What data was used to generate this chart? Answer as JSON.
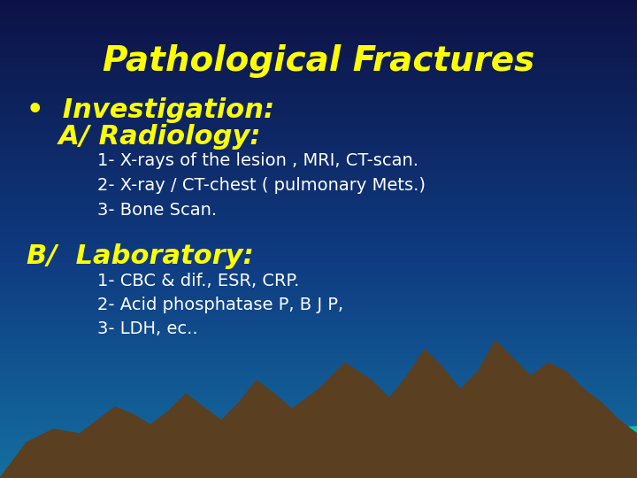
{
  "title": "Pathological Fractures",
  "title_color": "#FFFF00",
  "title_fontsize": 28,
  "title_style": "italic",
  "title_weight": "bold",
  "bullet1": "•  Investigation:",
  "bullet1_color": "#FFFF00",
  "bullet1_fontsize": 22,
  "radiology_header": "  A/ Radiology:",
  "radiology_header_color": "#FFFF00",
  "radiology_header_fontsize": 22,
  "radiology_items": [
    "1- X-rays of the lesion , MRI, CT-scan.",
    "2- X-ray / CT-chest ( pulmonary Mets.)",
    "3- Bone Scan."
  ],
  "radiology_color": "#ffffff",
  "radiology_fontsize": 14,
  "lab_header": "B/  Laboratory:",
  "lab_header_color": "#FFFF00",
  "lab_header_fontsize": 22,
  "lab_items": [
    "1- CBC & dif., ESR, CRP.",
    "2- Acid phosphatase P, B J P,",
    "3- LDH, ec.."
  ],
  "lab_color": "#ffffff",
  "lab_fontsize": 14,
  "mountain_color": "#5a4020",
  "teal_color": "#00c8b0"
}
